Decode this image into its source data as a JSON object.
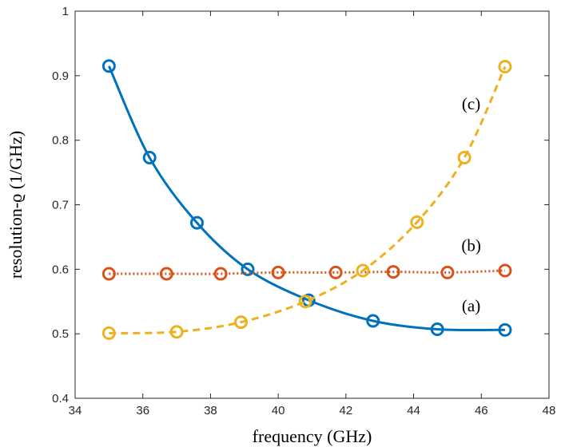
{
  "chart_data": {
    "type": "line",
    "xlabel": "frequency (GHz)",
    "ylabel": "resolution-ϱ (1/GHz)",
    "xlim": [
      34,
      48
    ],
    "ylim": [
      0.4,
      1.0
    ],
    "xticks": [
      34,
      36,
      38,
      40,
      42,
      44,
      46,
      48
    ],
    "yticks": [
      0.4,
      0.5,
      0.6,
      0.7,
      0.8,
      0.9,
      1
    ],
    "xtick_labels": [
      "34",
      "36",
      "38",
      "40",
      "42",
      "44",
      "46",
      "48"
    ],
    "ytick_labels": [
      "0.4",
      "0.5",
      "0.6",
      "0.7",
      "0.8",
      "0.9",
      "1"
    ],
    "grid": false,
    "series": [
      {
        "label": "(a)",
        "color": "#0072BD",
        "line_style": "solid",
        "marker": "circle",
        "x": [
          35.0,
          36.2,
          37.6,
          39.1,
          40.9,
          42.8,
          44.7,
          46.7
        ],
        "y": [
          0.915,
          0.773,
          0.672,
          0.6,
          0.552,
          0.52,
          0.507,
          0.506
        ]
      },
      {
        "label": "(b)",
        "color": "#D95319",
        "line_style": "dotted",
        "marker": "circle",
        "x": [
          35.0,
          36.7,
          38.3,
          40.0,
          41.7,
          43.4,
          45.0,
          46.7
        ],
        "y": [
          0.593,
          0.593,
          0.593,
          0.595,
          0.595,
          0.596,
          0.595,
          0.598
        ]
      },
      {
        "label": "(c)",
        "color": "#EDB120",
        "line_style": "dashed",
        "marker": "circle",
        "x": [
          35.0,
          37.0,
          38.9,
          40.8,
          42.5,
          44.1,
          45.5,
          46.7
        ],
        "y": [
          0.501,
          0.503,
          0.518,
          0.55,
          0.598,
          0.673,
          0.773,
          0.914
        ]
      }
    ],
    "annotations": [
      {
        "text": "(a)",
        "x": 45.7,
        "y": 0.535
      },
      {
        "text": "(b)",
        "x": 45.7,
        "y": 0.628
      },
      {
        "text": "(c)",
        "x": 45.7,
        "y": 0.848
      }
    ]
  }
}
